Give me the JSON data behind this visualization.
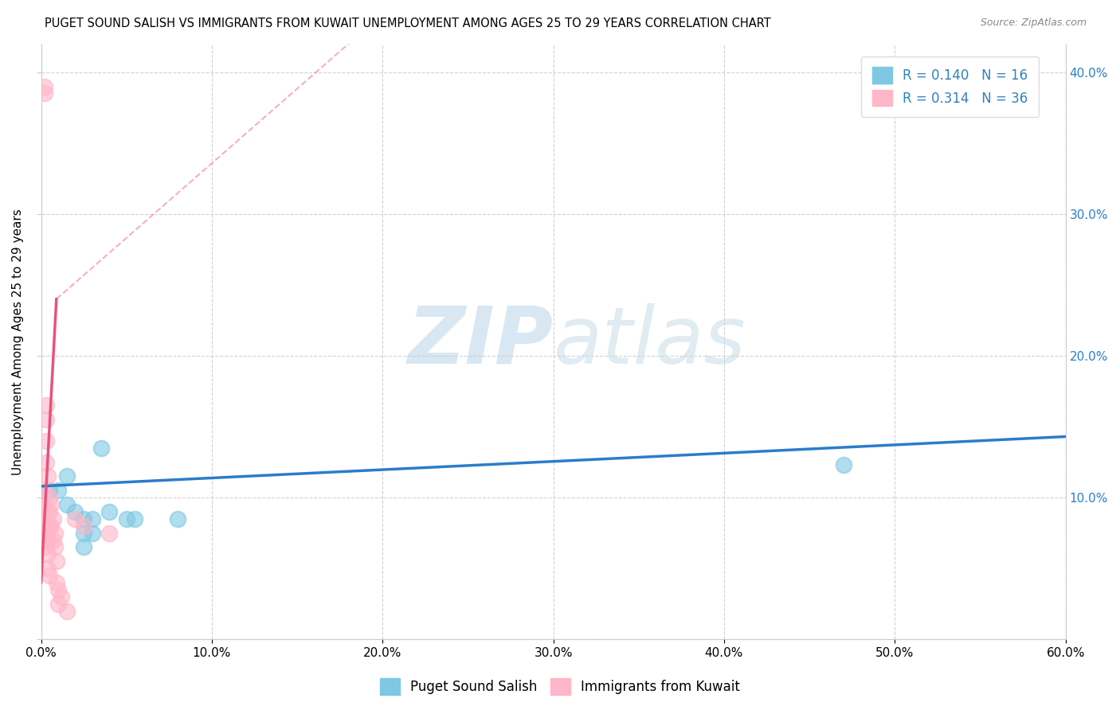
{
  "title": "PUGET SOUND SALISH VS IMMIGRANTS FROM KUWAIT UNEMPLOYMENT AMONG AGES 25 TO 29 YEARS CORRELATION CHART",
  "source": "Source: ZipAtlas.com",
  "ylabel": "Unemployment Among Ages 25 to 29 years",
  "xlim": [
    0.0,
    0.6
  ],
  "ylim": [
    0.0,
    0.42
  ],
  "xtick_vals": [
    0.0,
    0.1,
    0.2,
    0.3,
    0.4,
    0.5,
    0.6
  ],
  "xtick_labels": [
    "0.0%",
    "10.0%",
    "20.0%",
    "30.0%",
    "40.0%",
    "50.0%",
    "60.0%"
  ],
  "ytick_vals": [
    0.0,
    0.1,
    0.2,
    0.3,
    0.4
  ],
  "ytick_labels_right": [
    "",
    "10.0%",
    "20.0%",
    "30.0%",
    "40.0%"
  ],
  "blue_scatter_color": "#7ec8e3",
  "pink_scatter_color": "#ffb6c8",
  "blue_line_color": "#2a7dc9",
  "pink_line_color": "#e8527a",
  "legend_color": "#3182bd",
  "watermark_zip": "ZIP",
  "watermark_atlas": "atlas",
  "blue_scatter_x": [
    0.005,
    0.01,
    0.015,
    0.015,
    0.02,
    0.025,
    0.025,
    0.025,
    0.03,
    0.03,
    0.035,
    0.04,
    0.05,
    0.055,
    0.08,
    0.47
  ],
  "blue_scatter_y": [
    0.105,
    0.105,
    0.115,
    0.095,
    0.09,
    0.085,
    0.075,
    0.065,
    0.085,
    0.075,
    0.135,
    0.09,
    0.085,
    0.085,
    0.085,
    0.123
  ],
  "pink_scatter_x": [
    0.002,
    0.002,
    0.002,
    0.002,
    0.002,
    0.003,
    0.003,
    0.003,
    0.003,
    0.003,
    0.003,
    0.004,
    0.004,
    0.004,
    0.004,
    0.004,
    0.004,
    0.005,
    0.005,
    0.005,
    0.005,
    0.006,
    0.006,
    0.007,
    0.007,
    0.008,
    0.008,
    0.009,
    0.009,
    0.01,
    0.01,
    0.012,
    0.015,
    0.02,
    0.025,
    0.04
  ],
  "pink_scatter_y": [
    0.39,
    0.385,
    0.105,
    0.095,
    0.085,
    0.165,
    0.155,
    0.14,
    0.125,
    0.075,
    0.065,
    0.115,
    0.09,
    0.08,
    0.07,
    0.06,
    0.05,
    0.1,
    0.09,
    0.08,
    0.045,
    0.095,
    0.08,
    0.085,
    0.07,
    0.075,
    0.065,
    0.055,
    0.04,
    0.035,
    0.025,
    0.03,
    0.02,
    0.085,
    0.08,
    0.075
  ],
  "blue_trend_x0": 0.0,
  "blue_trend_y0": 0.108,
  "blue_trend_x1": 0.6,
  "blue_trend_y1": 0.143,
  "pink_trend_solid_x0": 0.0,
  "pink_trend_solid_y0": 0.04,
  "pink_trend_solid_x1": 0.009,
  "pink_trend_solid_y1": 0.24,
  "pink_trend_dashed_x0": 0.009,
  "pink_trend_dashed_y0": 0.24,
  "pink_trend_dashed_x1": 0.18,
  "pink_trend_dashed_y1": 0.42
}
